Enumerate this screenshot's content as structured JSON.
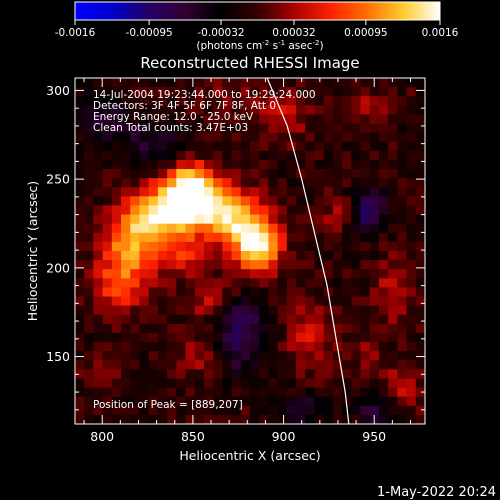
{
  "colorbar": {
    "ticks": [
      "-0.0016",
      "-0.00095",
      "-0.00032",
      "0.00032",
      "0.00095",
      "0.0016"
    ],
    "tick_values": [
      -0.0016,
      -0.00095,
      -0.00032,
      0.00032,
      0.00095,
      0.0016
    ],
    "range": [
      -0.0016,
      0.0016
    ],
    "units_main": "(photons cm",
    "units_exp1": "-2",
    "units_s": " s",
    "units_exp2": "-1",
    "units_asec": " asec",
    "units_exp3": "-2",
    "units_close": ")",
    "colormap": [
      "#0000ff",
      "#0000cc",
      "#220066",
      "#330033",
      "#000000",
      "#330000",
      "#aa0000",
      "#ff2000",
      "#ff7000",
      "#ffcc30",
      "#ffffff"
    ]
  },
  "chart_data": {
    "type": "heatmap",
    "title": "Reconstructed RHESSI Image",
    "xlabel": "Heliocentric X (arcsec)",
    "ylabel": "Heliocentric Y (arcsec)",
    "xlim": [
      785,
      978
    ],
    "ylim": [
      112,
      307
    ],
    "xticks": [
      800,
      850,
      900,
      950
    ],
    "yticks": [
      150,
      200,
      250,
      300
    ],
    "annotations": [
      "14-Jul-2004 19:23:44.000 to 19:29:24.000",
      "Detectors: 3F 4F 5F 6F 7F 8F, Att 0",
      "Energy Range: 12.0 - 25.0 keV",
      "Clean     Total counts: 3.47E+03"
    ],
    "peak_label": "Position of Peak = [889,207]",
    "peak": [
      889,
      207
    ],
    "limb_curve": [
      [
        891,
        307
      ],
      [
        902,
        280
      ],
      [
        910,
        250
      ],
      [
        917,
        220
      ],
      [
        924,
        190
      ],
      [
        929,
        160
      ],
      [
        934,
        130
      ],
      [
        936,
        112
      ]
    ],
    "sources": [
      {
        "x": 888,
        "y": 211,
        "sx": 9,
        "sy": 10,
        "amp": 1.0
      },
      {
        "x": 873,
        "y": 227,
        "sx": 13,
        "sy": 11,
        "amp": 0.8
      },
      {
        "x": 852,
        "y": 238,
        "sx": 12,
        "sy": 10,
        "amp": 0.9
      },
      {
        "x": 833,
        "y": 228,
        "sx": 12,
        "sy": 12,
        "amp": 0.85
      },
      {
        "x": 815,
        "y": 212,
        "sx": 10,
        "sy": 13,
        "amp": 0.65
      },
      {
        "x": 810,
        "y": 188,
        "sx": 11,
        "sy": 11,
        "amp": 0.45
      },
      {
        "x": 850,
        "y": 248,
        "sx": 8,
        "sy": 8,
        "amp": 0.55
      },
      {
        "x": 845,
        "y": 205,
        "sx": 10,
        "sy": 8,
        "amp": 0.35
      },
      {
        "x": 862,
        "y": 180,
        "sx": 9,
        "sy": 8,
        "amp": 0.3
      },
      {
        "x": 902,
        "y": 285,
        "sx": 10,
        "sy": 10,
        "amp": 0.3
      },
      {
        "x": 860,
        "y": 148,
        "sx": 12,
        "sy": 8,
        "amp": 0.28
      },
      {
        "x": 918,
        "y": 160,
        "sx": 9,
        "sy": 12,
        "amp": 0.35
      },
      {
        "x": 935,
        "y": 230,
        "sx": 8,
        "sy": 8,
        "amp": 0.22
      },
      {
        "x": 965,
        "y": 185,
        "sx": 7,
        "sy": 12,
        "amp": 0.3
      },
      {
        "x": 968,
        "y": 130,
        "sx": 8,
        "sy": 10,
        "amp": 0.25
      },
      {
        "x": 950,
        "y": 292,
        "sx": 12,
        "sy": 6,
        "amp": 0.2
      },
      {
        "x": 800,
        "y": 138,
        "sx": 8,
        "sy": 8,
        "amp": 0.2
      },
      {
        "x": 870,
        "y": 296,
        "sx": 10,
        "sy": 6,
        "amp": 0.18
      },
      {
        "x": 950,
        "y": 150,
        "sx": 6,
        "sy": 6,
        "amp": 0.22
      }
    ],
    "sinks": [
      {
        "x": 950,
        "y": 232,
        "sx": 7,
        "sy": 9,
        "amp": 0.6
      },
      {
        "x": 828,
        "y": 270,
        "sx": 12,
        "sy": 8,
        "amp": 0.35
      },
      {
        "x": 878,
        "y": 168,
        "sx": 10,
        "sy": 9,
        "amp": 0.45
      },
      {
        "x": 875,
        "y": 148,
        "sx": 9,
        "sy": 9,
        "amp": 0.4
      },
      {
        "x": 955,
        "y": 118,
        "sx": 8,
        "sy": 6,
        "amp": 0.35
      },
      {
        "x": 912,
        "y": 118,
        "sx": 10,
        "sy": 6,
        "amp": 0.3
      },
      {
        "x": 800,
        "y": 285,
        "sx": 10,
        "sy": 12,
        "amp": 0.3
      }
    ]
  },
  "footer": {
    "date": "1-May-2022 20:24"
  }
}
